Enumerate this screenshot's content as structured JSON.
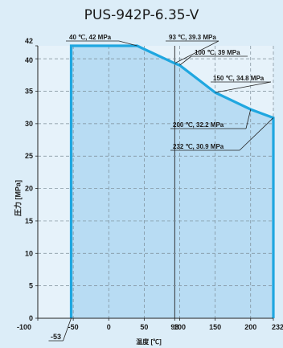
{
  "chart_data": {
    "type": "area",
    "title": "PUS-942P-6.35-V",
    "xlabel": "温度 [℃]",
    "ylabel": "圧力 [MPa]",
    "xlim": [
      -100,
      232
    ],
    "ylim": [
      0,
      42
    ],
    "x_ticks": [
      "-100",
      "-50",
      "0",
      "50",
      "93",
      "100",
      "150",
      "200",
      "232"
    ],
    "x_tick_values": [
      -100,
      -50,
      0,
      50,
      93,
      100,
      150,
      200,
      232
    ],
    "x_extra_label": "-53",
    "y_ticks": [
      "0",
      "5",
      "10",
      "15",
      "20",
      "25",
      "30",
      "35",
      "40",
      "42"
    ],
    "y_tick_values": [
      0,
      5,
      10,
      15,
      20,
      25,
      30,
      35,
      40,
      42
    ],
    "grid": true,
    "series": [
      {
        "x": [
          -53,
          -53,
          40,
          93,
          100,
          150,
          200,
          232,
          232
        ],
        "y": [
          0,
          42,
          42,
          39.3,
          39,
          34.8,
          32.2,
          30.9,
          0
        ]
      }
    ],
    "annotations": [
      {
        "label": "40 ℃, 42 MPa",
        "x": 40,
        "y": 42
      },
      {
        "label": "93 ℃, 39.3 MPa",
        "x": 93,
        "y": 39.3
      },
      {
        "label": "100 ℃, 39 MPa",
        "x": 100,
        "y": 39
      },
      {
        "label": "150 ℃, 34.8 MPa",
        "x": 150,
        "y": 34.8
      },
      {
        "label": "200 ℃, 32.2 MPa",
        "x": 200,
        "y": 32.2
      },
      {
        "label": "232 ℃, 30.9 MPa",
        "x": 232,
        "y": 30.9
      }
    ],
    "colors": {
      "line": "#1fa7e0",
      "fill": "#b8dcf3",
      "background": "#dcedf8"
    }
  }
}
